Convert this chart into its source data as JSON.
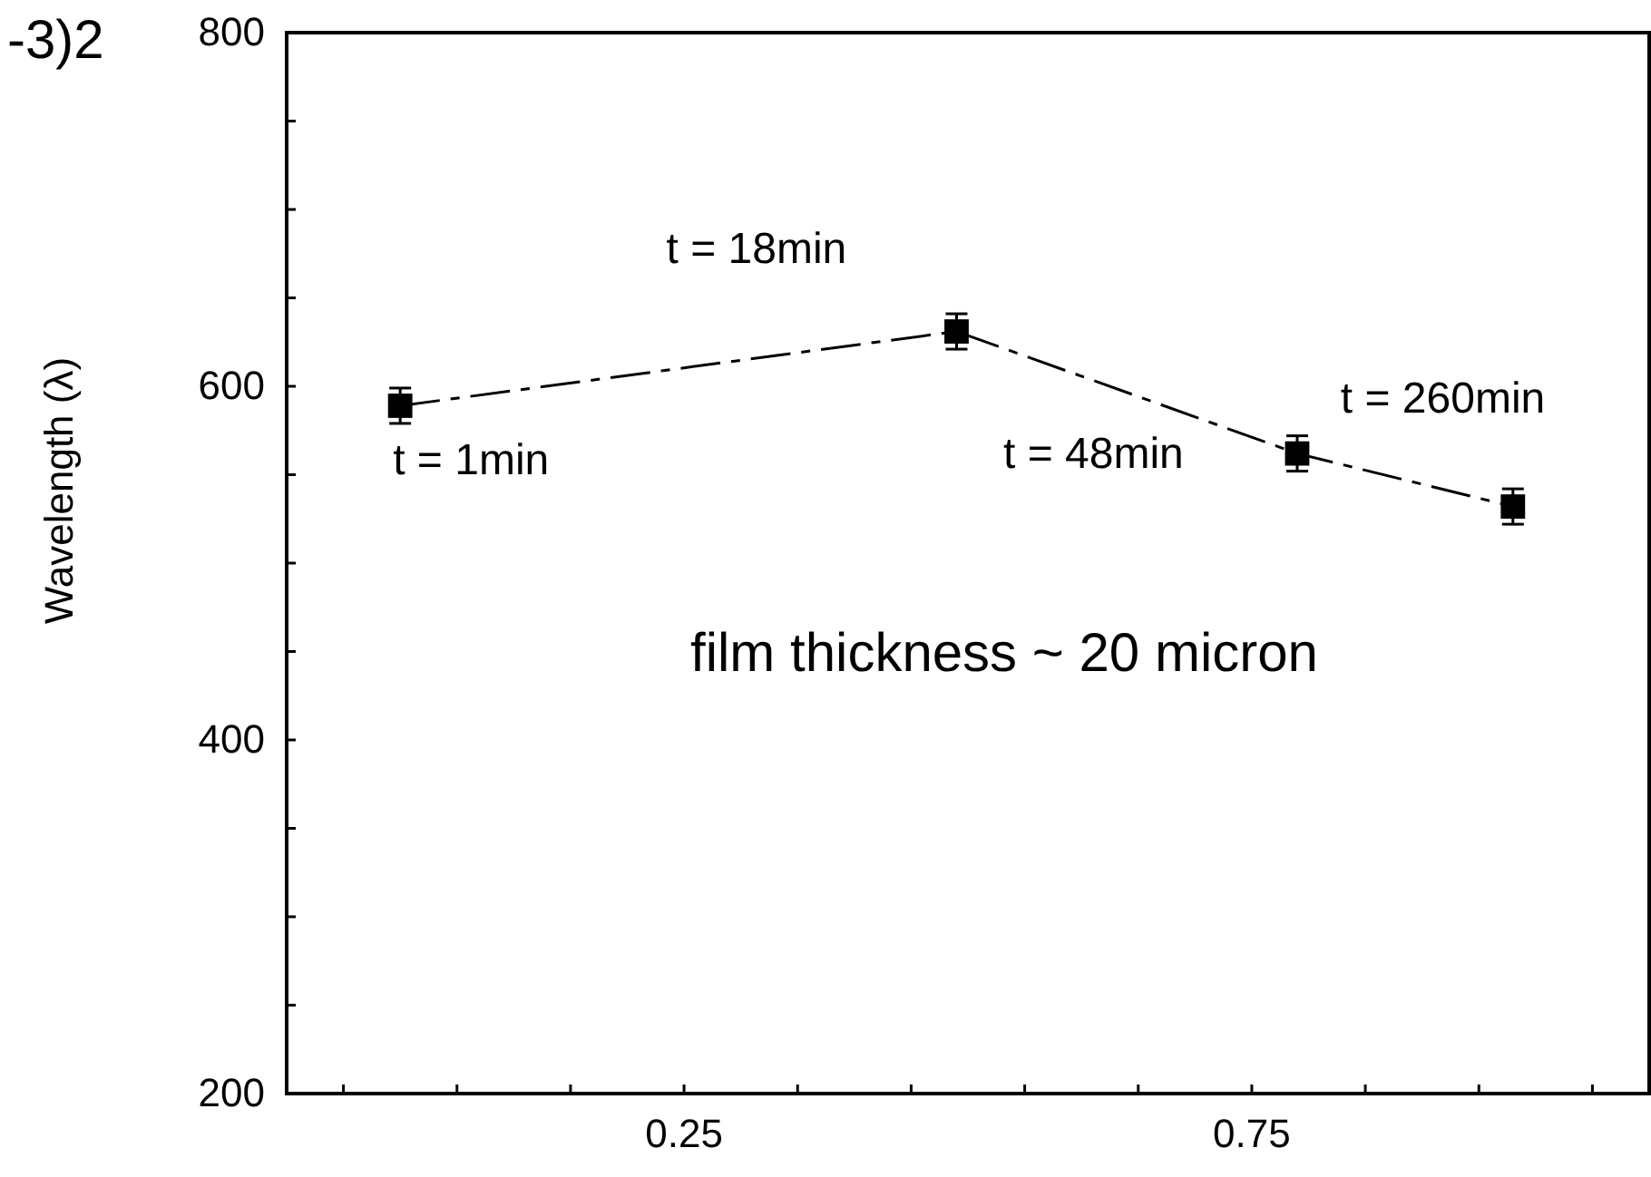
{
  "chart_data": {
    "type": "line",
    "ylabel": "Wavelength (λ)",
    "x": [
      0.0,
      0.49,
      0.79,
      0.98
    ],
    "series": [
      {
        "color": "#000000",
        "values": [
          589,
          631,
          562,
          532
        ],
        "errors": [
          10,
          10,
          10,
          10
        ]
      }
    ],
    "xlim": [
      -0.1,
      1.1
    ],
    "xticks": [
      {
        "value": -0.05,
        "label": null
      },
      {
        "value": 0.05,
        "label": null
      },
      {
        "value": 0.15,
        "label": null
      },
      0.25,
      {
        "value": 0.35,
        "label": null
      },
      {
        "value": 0.45,
        "label": null
      },
      {
        "value": 0.55,
        "label": null
      },
      {
        "value": 0.65,
        "label": null
      },
      0.75,
      {
        "value": 0.85,
        "label": null
      },
      {
        "value": 0.95,
        "label": null
      },
      {
        "value": 1.05,
        "label": null
      }
    ],
    "ylim": [
      200,
      800
    ],
    "yticks": [
      200,
      {
        "value": 250,
        "label": null
      },
      {
        "value": 300,
        "label": null
      },
      {
        "value": 350,
        "label": null
      },
      400,
      {
        "value": 450,
        "label": null
      },
      {
        "value": 500,
        "label": null
      },
      {
        "value": 550,
        "label": null
      },
      600,
      {
        "value": 650,
        "label": null
      },
      {
        "value": 700,
        "label": null
      },
      {
        "value": 750,
        "label": null
      },
      800
    ],
    "marker": "square",
    "line_style": "dashed",
    "grid": false,
    "annotations": [
      {
        "text": "t = 1min",
        "x": 0.0,
        "y": 589
      },
      {
        "text": "t = 18min",
        "x": 0.49,
        "y": 631
      },
      {
        "text": "t = 48min",
        "x": 0.79,
        "y": 562
      },
      {
        "text": "t = 260min",
        "x": 0.98,
        "y": 532
      },
      "film thickness ~ 20 micron",
      "-3)2"
    ]
  }
}
